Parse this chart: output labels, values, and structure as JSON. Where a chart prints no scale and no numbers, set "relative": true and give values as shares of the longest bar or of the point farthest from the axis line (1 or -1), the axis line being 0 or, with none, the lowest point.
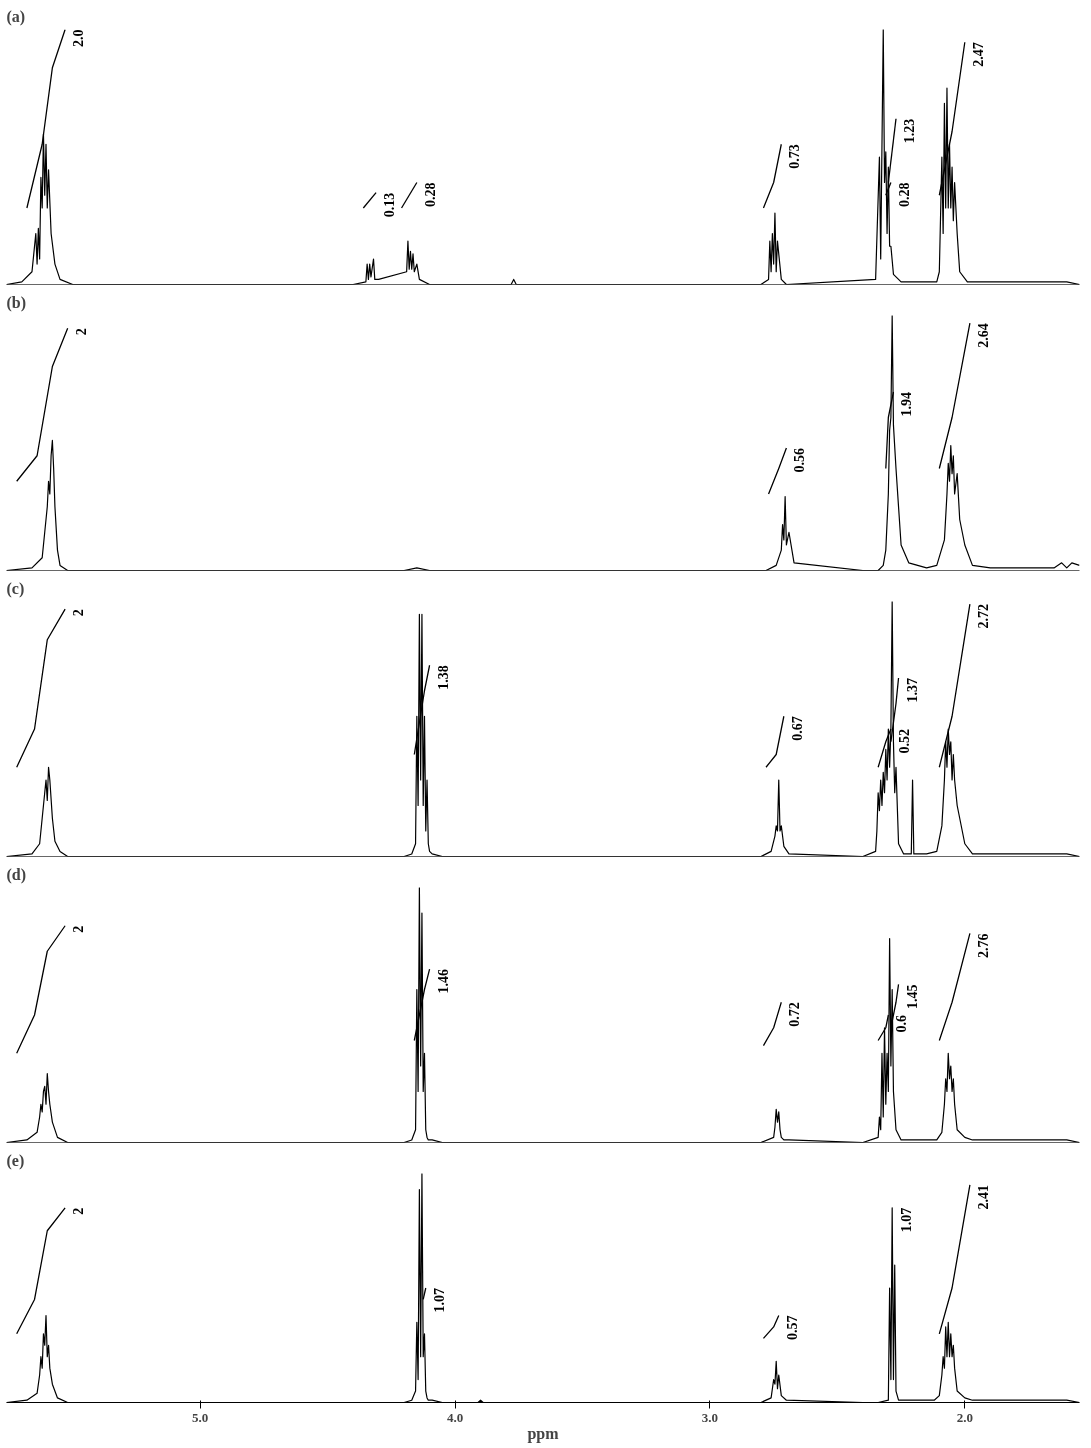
{
  "chart_data": [
    {
      "type": "line",
      "title": "(a)",
      "relative": true,
      "xlim": [
        5.76,
        1.55
      ],
      "tick_labels": false,
      "grid": false,
      "series": [
        {
          "color": "#000000",
          "x": [
            5.76,
            5.7,
            5.66,
            5.645,
            5.64,
            5.635,
            5.63,
            5.625,
            5.62,
            5.615,
            5.61,
            5.605,
            5.6,
            5.595,
            5.585,
            5.57,
            5.55,
            5.5,
            4.4,
            4.35,
            4.345,
            4.34,
            4.335,
            4.33,
            4.32,
            4.315,
            4.3,
            4.19,
            4.185,
            4.18,
            4.175,
            4.17,
            4.165,
            4.16,
            4.15,
            4.14,
            4.1,
            3.78,
            3.77,
            3.76,
            2.8,
            2.77,
            2.765,
            2.76,
            2.755,
            2.75,
            2.745,
            2.74,
            2.735,
            2.72,
            2.7,
            2.35,
            2.335,
            2.33,
            2.32,
            2.315,
            2.31,
            2.305,
            2.3,
            2.295,
            2.29,
            2.28,
            2.25,
            2.11,
            2.1,
            2.09,
            2.085,
            2.08,
            2.075,
            2.07,
            2.065,
            2.06,
            2.055,
            2.05,
            2.045,
            2.04,
            2.03,
            2.02,
            1.99,
            1.6,
            1.55
          ],
          "values": [
            0,
            0.01,
            0.05,
            0.2,
            0.08,
            0.22,
            0.1,
            0.42,
            0.3,
            0.59,
            0.35,
            0.55,
            0.3,
            0.45,
            0.2,
            0.08,
            0.02,
            0,
            0,
            0.01,
            0.08,
            0.02,
            0.08,
            0.03,
            0.1,
            0.02,
            0.02,
            0.05,
            0.17,
            0.06,
            0.13,
            0.06,
            0.12,
            0.05,
            0.08,
            0.02,
            0,
            0,
            0.02,
            0,
            0,
            0.02,
            0.17,
            0.05,
            0.2,
            0.08,
            0.28,
            0.05,
            0.17,
            0.02,
            0,
            0.02,
            0.5,
            0.1,
            1.0,
            0.4,
            0.52,
            0.2,
            0.46,
            0.15,
            0.15,
            0.04,
            0.01,
            0.01,
            0.05,
            0.5,
            0.2,
            0.71,
            0.3,
            0.77,
            0.3,
            0.55,
            0.3,
            0.46,
            0.25,
            0.4,
            0.2,
            0.05,
            0.01,
            0.01,
            0
          ]
        },
        {
          "color": "#000000",
          "x": [
            5.68,
            5.62,
            5.58,
            5.53
          ],
          "values": [
            0.3,
            0.55,
            0.85,
            1.0
          ]
        },
        {
          "color": "#000000",
          "x": [
            4.36,
            4.31
          ],
          "values": [
            0.3,
            0.36
          ]
        },
        {
          "color": "#000000",
          "x": [
            4.21,
            4.15
          ],
          "values": [
            0.3,
            0.4
          ]
        },
        {
          "color": "#000000",
          "x": [
            2.79,
            2.75,
            2.72
          ],
          "values": [
            0.3,
            0.4,
            0.55
          ]
        },
        {
          "color": "#000000",
          "x": [
            2.31,
            2.29
          ],
          "values": [
            0.35,
            0.4
          ]
        },
        {
          "color": "#000000",
          "x": [
            2.3,
            2.27
          ],
          "values": [
            0.4,
            0.65
          ]
        },
        {
          "color": "#000000",
          "x": [
            2.1,
            2.05,
            2.0
          ],
          "values": [
            0.35,
            0.6,
            0.95
          ]
        }
      ],
      "annotations": [
        {
          "text": "2.0",
          "x": 5.53,
          "y": 1.0
        },
        {
          "text": "0.13",
          "x": 4.31,
          "y": 0.36
        },
        {
          "text": "0.28",
          "x": 4.15,
          "y": 0.4
        },
        {
          "text": "0.73",
          "x": 2.72,
          "y": 0.55
        },
        {
          "text": "0.28",
          "x": 2.29,
          "y": 0.4
        },
        {
          "text": "1.23",
          "x": 2.27,
          "y": 0.65
        },
        {
          "text": "2.47",
          "x": 2.0,
          "y": 0.95
        }
      ]
    },
    {
      "type": "line",
      "title": "(b)",
      "relative": true,
      "xlim": [
        5.76,
        1.55
      ],
      "tick_labels": false,
      "grid": false,
      "series": [
        {
          "color": "#000000",
          "x": [
            5.76,
            5.66,
            5.62,
            5.61,
            5.6,
            5.595,
            5.59,
            5.585,
            5.58,
            5.575,
            5.57,
            5.56,
            5.55,
            5.52,
            4.2,
            4.15,
            4.1,
            2.78,
            2.74,
            2.72,
            2.715,
            2.71,
            2.705,
            2.7,
            2.69,
            2.67,
            2.4,
            2.34,
            2.32,
            2.31,
            2.3,
            2.295,
            2.29,
            2.285,
            2.28,
            2.27,
            2.25,
            2.22,
            2.15,
            2.11,
            2.08,
            2.07,
            2.065,
            2.06,
            2.055,
            2.05,
            2.045,
            2.04,
            2.03,
            2.02,
            2.0,
            1.97,
            1.9,
            1.65,
            1.62,
            1.6,
            1.58,
            1.55
          ],
          "values": [
            0,
            0.01,
            0.05,
            0.15,
            0.25,
            0.35,
            0.3,
            0.45,
            0.51,
            0.4,
            0.25,
            0.08,
            0.02,
            0,
            0,
            0.01,
            0,
            0,
            0.02,
            0.08,
            0.18,
            0.12,
            0.29,
            0.1,
            0.15,
            0.03,
            0,
            0,
            0.02,
            0.08,
            0.3,
            0.55,
            0.6,
            1.0,
            0.57,
            0.4,
            0.1,
            0.03,
            0.01,
            0.02,
            0.12,
            0.3,
            0.42,
            0.35,
            0.49,
            0.38,
            0.45,
            0.3,
            0.38,
            0.2,
            0.1,
            0.02,
            0.01,
            0.01,
            0.03,
            0.01,
            0.03,
            0.02
          ]
        },
        {
          "color": "#000000",
          "x": [
            5.72,
            5.64,
            5.58,
            5.52
          ],
          "values": [
            0.35,
            0.45,
            0.8,
            0.95
          ]
        },
        {
          "color": "#000000",
          "x": [
            2.77,
            2.73,
            2.7
          ],
          "values": [
            0.3,
            0.4,
            0.48
          ]
        },
        {
          "color": "#000000",
          "x": [
            2.31,
            2.3,
            2.28
          ],
          "values": [
            0.4,
            0.6,
            0.7
          ]
        },
        {
          "color": "#000000",
          "x": [
            2.1,
            2.05,
            1.98
          ],
          "values": [
            0.4,
            0.6,
            0.97
          ]
        }
      ],
      "annotations": [
        {
          "text": "2",
          "x": 5.52,
          "y": 0.95
        },
        {
          "text": "0.56",
          "x": 2.7,
          "y": 0.48
        },
        {
          "text": "1.94",
          "x": 2.28,
          "y": 0.7
        },
        {
          "text": "2.64",
          "x": 1.98,
          "y": 0.97
        }
      ]
    },
    {
      "type": "line",
      "title": "(c)",
      "relative": true,
      "xlim": [
        5.76,
        1.55
      ],
      "tick_labels": false,
      "grid": false,
      "series": [
        {
          "color": "#000000",
          "x": [
            5.76,
            5.66,
            5.63,
            5.62,
            5.615,
            5.61,
            5.605,
            5.6,
            5.595,
            5.59,
            5.58,
            5.57,
            5.55,
            5.52,
            4.2,
            4.17,
            4.155,
            4.15,
            4.145,
            4.14,
            4.135,
            4.13,
            4.125,
            4.12,
            4.115,
            4.11,
            4.105,
            4.1,
            4.09,
            4.05,
            2.8,
            2.76,
            2.745,
            2.74,
            2.735,
            2.73,
            2.725,
            2.72,
            2.71,
            2.69,
            2.4,
            2.35,
            2.345,
            2.34,
            2.335,
            2.33,
            2.325,
            2.32,
            2.315,
            2.31,
            2.305,
            2.3,
            2.295,
            2.29,
            2.285,
            2.28,
            2.275,
            2.27,
            2.26,
            2.24,
            2.21,
            2.205,
            2.2,
            2.19,
            2.15,
            2.11,
            2.09,
            2.08,
            2.075,
            2.07,
            2.065,
            2.06,
            2.055,
            2.05,
            2.045,
            2.04,
            2.03,
            2.0,
            1.97,
            1.6,
            1.55
          ],
          "values": [
            0,
            0.01,
            0.05,
            0.15,
            0.2,
            0.25,
            0.3,
            0.22,
            0.35,
            0.3,
            0.15,
            0.06,
            0.02,
            0,
            0,
            0.01,
            0.05,
            0.55,
            0.2,
            0.95,
            0.3,
            0.95,
            0.2,
            0.55,
            0.1,
            0.3,
            0.05,
            0.02,
            0.01,
            0,
            0,
            0.02,
            0.08,
            0.12,
            0.1,
            0.3,
            0.1,
            0.12,
            0.04,
            0.01,
            0,
            0.02,
            0.1,
            0.25,
            0.18,
            0.3,
            0.2,
            0.33,
            0.25,
            0.42,
            0.3,
            0.5,
            0.35,
            0.5,
            1.0,
            0.45,
            0.25,
            0.35,
            0.05,
            0.01,
            0.01,
            0.3,
            0.01,
            0.01,
            0.01,
            0.02,
            0.12,
            0.3,
            0.45,
            0.35,
            0.5,
            0.4,
            0.45,
            0.3,
            0.4,
            0.3,
            0.2,
            0.05,
            0.01,
            0.01,
            0
          ]
        },
        {
          "color": "#000000",
          "x": [
            5.72,
            5.65,
            5.6,
            5.53
          ],
          "values": [
            0.35,
            0.5,
            0.85,
            0.97
          ]
        },
        {
          "color": "#000000",
          "x": [
            4.16,
            4.12,
            4.1
          ],
          "values": [
            0.4,
            0.65,
            0.75
          ]
        },
        {
          "color": "#000000",
          "x": [
            2.78,
            2.74,
            2.71
          ],
          "values": [
            0.35,
            0.4,
            0.55
          ]
        },
        {
          "color": "#000000",
          "x": [
            2.34,
            2.31,
            2.29
          ],
          "values": [
            0.35,
            0.45,
            0.5
          ]
        },
        {
          "color": "#000000",
          "x": [
            2.29,
            2.27,
            2.26
          ],
          "values": [
            0.45,
            0.6,
            0.7
          ]
        },
        {
          "color": "#000000",
          "x": [
            2.1,
            2.05,
            1.98
          ],
          "values": [
            0.35,
            0.55,
            0.99
          ]
        }
      ],
      "annotations": [
        {
          "text": "2",
          "x": 5.53,
          "y": 0.97
        },
        {
          "text": "1.38",
          "x": 4.1,
          "y": 0.75
        },
        {
          "text": "0.67",
          "x": 2.71,
          "y": 0.55
        },
        {
          "text": "0.52",
          "x": 2.29,
          "y": 0.5
        },
        {
          "text": "1.37",
          "x": 2.26,
          "y": 0.7
        },
        {
          "text": "2.72",
          "x": 1.98,
          "y": 0.99
        }
      ]
    },
    {
      "type": "line",
      "title": "(d)",
      "relative": true,
      "xlim": [
        5.76,
        1.55
      ],
      "tick_labels": false,
      "grid": false,
      "series": [
        {
          "color": "#000000",
          "x": [
            5.76,
            5.68,
            5.64,
            5.63,
            5.625,
            5.62,
            5.615,
            5.61,
            5.605,
            5.6,
            5.595,
            5.59,
            5.58,
            5.56,
            5.52,
            4.2,
            4.17,
            4.155,
            4.15,
            4.145,
            4.14,
            4.135,
            4.13,
            4.125,
            4.12,
            4.115,
            4.11,
            4.105,
            4.1,
            4.09,
            4.05,
            2.8,
            2.75,
            2.745,
            2.74,
            2.735,
            2.73,
            2.725,
            2.72,
            2.71,
            2.69,
            2.4,
            2.34,
            2.335,
            2.33,
            2.325,
            2.32,
            2.315,
            2.31,
            2.305,
            2.3,
            2.295,
            2.29,
            2.285,
            2.28,
            2.27,
            2.25,
            2.11,
            2.09,
            2.08,
            2.075,
            2.07,
            2.065,
            2.06,
            2.055,
            2.05,
            2.045,
            2.04,
            2.03,
            2.0,
            1.97,
            1.6,
            1.55
          ],
          "values": [
            0,
            0.01,
            0.04,
            0.1,
            0.15,
            0.12,
            0.2,
            0.22,
            0.15,
            0.27,
            0.2,
            0.15,
            0.08,
            0.02,
            0,
            0,
            0.01,
            0.05,
            0.6,
            0.2,
            1.0,
            0.3,
            0.9,
            0.2,
            0.35,
            0.05,
            0.02,
            0.01,
            0.01,
            0.01,
            0,
            0,
            0.02,
            0.06,
            0.13,
            0.08,
            0.12,
            0.05,
            0.02,
            0.01,
            0.01,
            0,
            0.02,
            0.1,
            0.05,
            0.35,
            0.1,
            0.45,
            0.15,
            0.35,
            0.2,
            0.8,
            0.3,
            0.6,
            0.2,
            0.05,
            0.01,
            0.01,
            0.04,
            0.15,
            0.25,
            0.2,
            0.35,
            0.25,
            0.3,
            0.2,
            0.25,
            0.15,
            0.05,
            0.02,
            0.01,
            0.01,
            0
          ]
        },
        {
          "color": "#000000",
          "x": [
            5.72,
            5.65,
            5.6,
            5.53
          ],
          "values": [
            0.35,
            0.5,
            0.75,
            0.85
          ]
        },
        {
          "color": "#000000",
          "x": [
            4.16,
            4.12,
            4.1
          ],
          "values": [
            0.4,
            0.6,
            0.68
          ]
        },
        {
          "color": "#000000",
          "x": [
            2.79,
            2.75,
            2.72
          ],
          "values": [
            0.38,
            0.45,
            0.55
          ]
        },
        {
          "color": "#000000",
          "x": [
            2.34,
            2.31,
            2.3
          ],
          "values": [
            0.4,
            0.45,
            0.5
          ]
        },
        {
          "color": "#000000",
          "x": [
            2.29,
            2.27,
            2.26
          ],
          "values": [
            0.45,
            0.55,
            0.62
          ]
        },
        {
          "color": "#000000",
          "x": [
            2.1,
            2.05,
            1.98
          ],
          "values": [
            0.4,
            0.55,
            0.82
          ]
        }
      ],
      "annotations": [
        {
          "text": "2",
          "x": 5.53,
          "y": 0.85
        },
        {
          "text": "1.46",
          "x": 4.1,
          "y": 0.68
        },
        {
          "text": "0.72",
          "x": 2.72,
          "y": 0.55
        },
        {
          "text": "0.6",
          "x": 2.3,
          "y": 0.5
        },
        {
          "text": "1.45",
          "x": 2.26,
          "y": 0.62
        },
        {
          "text": "2.76",
          "x": 1.98,
          "y": 0.82
        }
      ]
    },
    {
      "type": "line",
      "title": "(e)",
      "relative": true,
      "xlim": [
        5.76,
        1.55
      ],
      "xticks": [
        {
          "value": 5,
          "label": "5.0"
        },
        {
          "value": 4,
          "label": "4.0"
        },
        {
          "value": 3,
          "label": "3.0"
        },
        {
          "value": 2,
          "label": "2.0"
        }
      ],
      "xlabel": "ppm",
      "tick_labels": "x",
      "grid": false,
      "series": [
        {
          "color": "#000000",
          "x": [
            5.76,
            5.68,
            5.64,
            5.63,
            5.625,
            5.62,
            5.615,
            5.61,
            5.605,
            5.6,
            5.595,
            5.59,
            5.58,
            5.56,
            5.52,
            4.2,
            4.17,
            4.155,
            4.15,
            4.145,
            4.14,
            4.135,
            4.13,
            4.125,
            4.12,
            4.115,
            4.11,
            4.105,
            4.1,
            4.09,
            4.05,
            3.91,
            3.9,
            3.89,
            2.8,
            2.76,
            2.755,
            2.75,
            2.745,
            2.74,
            2.735,
            2.73,
            2.72,
            2.7,
            2.4,
            2.34,
            2.3,
            2.295,
            2.29,
            2.285,
            2.28,
            2.275,
            2.27,
            2.26,
            2.24,
            2.12,
            2.1,
            2.09,
            2.085,
            2.08,
            2.075,
            2.07,
            2.065,
            2.06,
            2.055,
            2.05,
            2.045,
            2.04,
            2.03,
            2.0,
            1.97,
            1.6,
            1.55
          ],
          "values": [
            0,
            0.01,
            0.04,
            0.12,
            0.2,
            0.15,
            0.3,
            0.25,
            0.38,
            0.2,
            0.25,
            0.15,
            0.08,
            0.02,
            0,
            0,
            0.01,
            0.05,
            0.35,
            0.1,
            0.93,
            0.2,
            1.0,
            0.2,
            0.3,
            0.05,
            0.02,
            0.01,
            0.01,
            0.01,
            0,
            0,
            0.01,
            0,
            0,
            0.02,
            0.06,
            0.1,
            0.08,
            0.18,
            0.06,
            0.12,
            0.03,
            0.01,
            0,
            0,
            0.01,
            0.5,
            0.1,
            0.85,
            0.1,
            0.6,
            0.05,
            0.01,
            0.01,
            0.01,
            0.03,
            0.12,
            0.2,
            0.15,
            0.33,
            0.2,
            0.35,
            0.2,
            0.3,
            0.2,
            0.25,
            0.15,
            0.05,
            0.02,
            0.01,
            0.01,
            0
          ]
        },
        {
          "color": "#000000",
          "x": [
            5.72,
            5.65,
            5.6,
            5.53
          ],
          "values": [
            0.3,
            0.45,
            0.75,
            0.85
          ]
        },
        {
          "color": "#000000",
          "x": [
            4.125,
            4.115
          ],
          "values": [
            0.45,
            0.5
          ]
        },
        {
          "color": "#000000",
          "x": [
            2.79,
            2.75,
            2.73
          ],
          "values": [
            0.28,
            0.33,
            0.38
          ]
        },
        {
          "color": "#000000",
          "x": [
            2.1,
            2.05,
            1.98
          ],
          "values": [
            0.3,
            0.5,
            0.95
          ]
        }
      ],
      "annotations": [
        {
          "text": "2",
          "x": 5.53,
          "y": 0.85
        },
        {
          "text": "1.07",
          "x": 4.115,
          "y": 0.5
        },
        {
          "text": "0.57",
          "x": 2.73,
          "y": 0.38
        },
        {
          "text": "1.07",
          "x": 2.28,
          "y": 0.85
        },
        {
          "text": "2.41",
          "x": 1.98,
          "y": 0.95
        }
      ]
    }
  ]
}
